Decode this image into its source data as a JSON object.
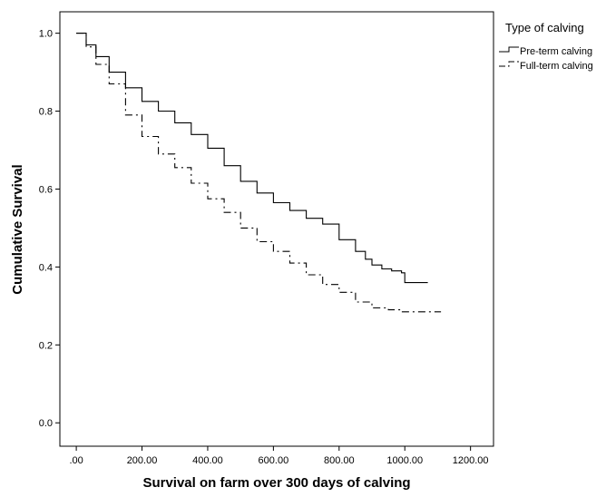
{
  "chart_data": {
    "type": "line",
    "title": "",
    "xlabel": "Survival on farm over 300 days of calving",
    "ylabel": "Cumulative Survival",
    "xlim": [
      -50,
      1270
    ],
    "ylim": [
      -0.06,
      1.055
    ],
    "x_ticks": [
      0,
      200,
      400,
      600,
      800,
      1000,
      1200
    ],
    "x_tick_labels": [
      ".00",
      "200.00",
      "400.00",
      "600.00",
      "800.00",
      "1000.00",
      "1200.00"
    ],
    "y_ticks": [
      0.0,
      0.2,
      0.4,
      0.6,
      0.8,
      1.0
    ],
    "y_tick_labels": [
      "0.0",
      "0.2",
      "0.4",
      "0.6",
      "0.8",
      "1.0"
    ],
    "grid": false,
    "legend": {
      "title": "Type of calving",
      "placement": "outside-right"
    },
    "series": [
      {
        "name": "Pre-term calving",
        "style": "solid-step",
        "color": "#000000",
        "x": [
          0,
          30,
          60,
          100,
          150,
          200,
          250,
          300,
          350,
          400,
          450,
          500,
          550,
          600,
          650,
          700,
          750,
          800,
          850,
          880,
          900,
          930,
          960,
          990,
          1000,
          1020,
          1040,
          1070
        ],
        "y": [
          1.0,
          0.97,
          0.94,
          0.9,
          0.86,
          0.825,
          0.8,
          0.77,
          0.74,
          0.705,
          0.66,
          0.62,
          0.59,
          0.565,
          0.545,
          0.525,
          0.51,
          0.47,
          0.44,
          0.42,
          0.405,
          0.395,
          0.39,
          0.385,
          0.36,
          0.36,
          0.36,
          0.36
        ]
      },
      {
        "name": "Full-term calving",
        "style": "dash-dot-step",
        "color": "#000000",
        "x": [
          0,
          30,
          60,
          100,
          150,
          200,
          250,
          300,
          350,
          400,
          450,
          500,
          550,
          600,
          650,
          700,
          750,
          800,
          850,
          900,
          950,
          990,
          1000,
          1050,
          1110
        ],
        "y": [
          1.0,
          0.965,
          0.92,
          0.87,
          0.79,
          0.735,
          0.69,
          0.655,
          0.615,
          0.575,
          0.54,
          0.5,
          0.465,
          0.44,
          0.41,
          0.38,
          0.355,
          0.335,
          0.31,
          0.295,
          0.29,
          0.285,
          0.285,
          0.285,
          0.285
        ]
      }
    ]
  }
}
